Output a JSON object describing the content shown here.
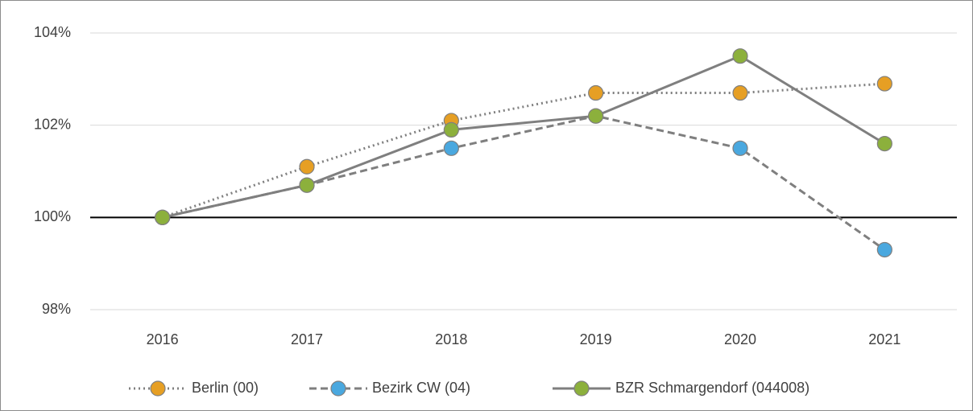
{
  "chart_data": {
    "type": "line",
    "categories": [
      "2016",
      "2017",
      "2018",
      "2019",
      "2020",
      "2021"
    ],
    "series": [
      {
        "name": "Berlin (00)",
        "color": "#e69f24",
        "line_color": "#7f7f7f",
        "line_style": "dotted",
        "values": [
          100,
          101.1,
          102.1,
          102.7,
          102.7,
          102.9
        ]
      },
      {
        "name": "Bezirk CW (04)",
        "color": "#4aa8df",
        "line_color": "#7f7f7f",
        "line_style": "dashed",
        "values": [
          100,
          100.7,
          101.5,
          102.2,
          101.5,
          99.3
        ]
      },
      {
        "name": "BZR Schmargendorf (044008)",
        "color": "#8cb03c",
        "line_color": "#7f7f7f",
        "line_style": "solid",
        "values": [
          100,
          100.7,
          101.9,
          102.2,
          103.5,
          101.6
        ]
      }
    ],
    "ylim": [
      98,
      104
    ],
    "yticks": [
      {
        "value": 98,
        "label": "98%"
      },
      {
        "value": 100,
        "label": "100%"
      },
      {
        "value": 102,
        "label": "102%"
      },
      {
        "value": 104,
        "label": "104%"
      }
    ],
    "reference_line": 100,
    "grid": true,
    "legend": "bottom"
  }
}
